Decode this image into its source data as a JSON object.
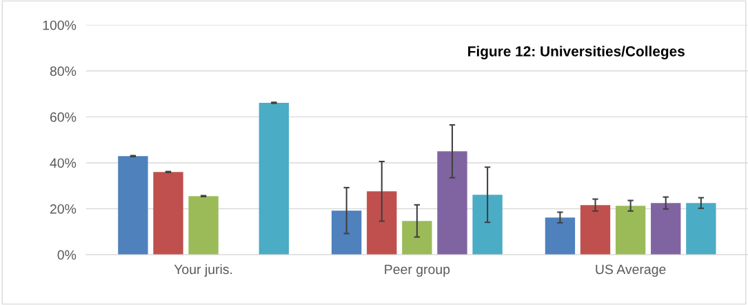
{
  "chart_data": {
    "type": "bar",
    "title": "Figure 12: Universities/Colleges",
    "categories": [
      "Your juris.",
      "Peer group",
      "US Average"
    ],
    "series": [
      {
        "color": "#4f81bd",
        "values": [
          0.429,
          0.192,
          0.162
        ],
        "errors": [
          0.002,
          0.1,
          0.023
        ]
      },
      {
        "color": "#c0504d",
        "values": [
          0.36,
          0.276,
          0.216
        ],
        "errors": [
          0.002,
          0.13,
          0.026
        ]
      },
      {
        "color": "#9bbb59",
        "values": [
          0.255,
          0.147,
          0.213
        ],
        "errors": [
          0.002,
          0.07,
          0.023
        ]
      },
      {
        "color": "#8064a2",
        "values": [
          null,
          0.45,
          0.225
        ],
        "errors": [
          null,
          0.115,
          0.026
        ]
      },
      {
        "color": "#4bacc6",
        "values": [
          0.661,
          0.261,
          0.225
        ],
        "errors": [
          0.002,
          0.12,
          0.023
        ]
      }
    ],
    "ylim": [
      0,
      1
    ],
    "yticks": [
      {
        "value": 0,
        "label": "0%"
      },
      {
        "value": 0.2,
        "label": "20%"
      },
      {
        "value": 0.4,
        "label": "40%"
      },
      {
        "value": 0.6,
        "label": "60%"
      },
      {
        "value": 0.8,
        "label": "80%"
      },
      {
        "value": 1,
        "label": "100%"
      }
    ],
    "grid": "y"
  }
}
